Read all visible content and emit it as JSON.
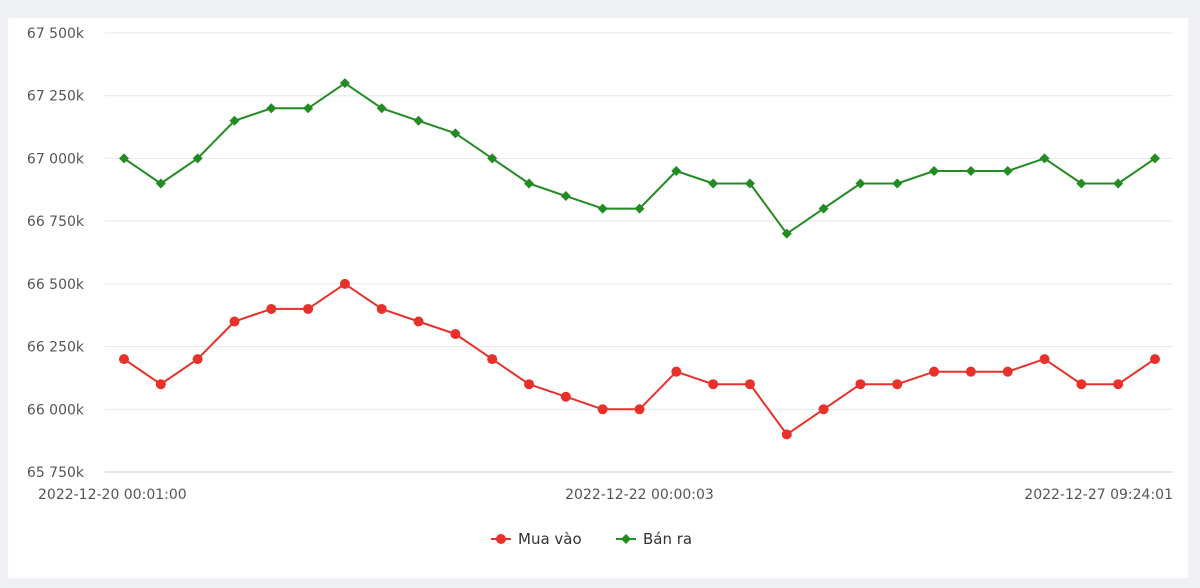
{
  "chart_data": {
    "type": "line",
    "title": "",
    "xlabel": "",
    "ylabel": "",
    "ylim": [
      65750,
      67500
    ],
    "y_ticks": [
      65750,
      66000,
      66250,
      66500,
      66750,
      67000,
      67250,
      67500
    ],
    "y_tick_labels": [
      "65 750k",
      "66 000k",
      "66 250k",
      "66 500k",
      "66 750k",
      "67 000k",
      "67 250k",
      "67 500k"
    ],
    "x_tick_labels": [
      {
        "index": 0,
        "label": "2022-12-20 00:01:00"
      },
      {
        "index": 14,
        "label": "2022-12-22 00:00:03"
      },
      {
        "index": 28,
        "label": "2022-12-27 09:24:01"
      }
    ],
    "grid": true,
    "legend_position": "bottom-center",
    "series": [
      {
        "name": "Mua vào",
        "color": "#e8312a",
        "marker": "circle",
        "values": [
          66200,
          66100,
          66200,
          66350,
          66400,
          66400,
          66500,
          66400,
          66350,
          66300,
          66200,
          66100,
          66050,
          66000,
          66000,
          66150,
          66100,
          66100,
          65900,
          66000,
          66100,
          66100,
          66150,
          66150,
          66150,
          66200,
          66100,
          66100,
          66200
        ]
      },
      {
        "name": "Bán ra",
        "color": "#228b22",
        "marker": "diamond",
        "values": [
          67000,
          66900,
          67000,
          67150,
          67200,
          67200,
          67300,
          67200,
          67150,
          67100,
          67000,
          66900,
          66850,
          66800,
          66800,
          66950,
          66900,
          66900,
          66700,
          66800,
          66900,
          66900,
          66950,
          66950,
          66950,
          67000,
          66900,
          66900,
          67000
        ]
      }
    ]
  }
}
